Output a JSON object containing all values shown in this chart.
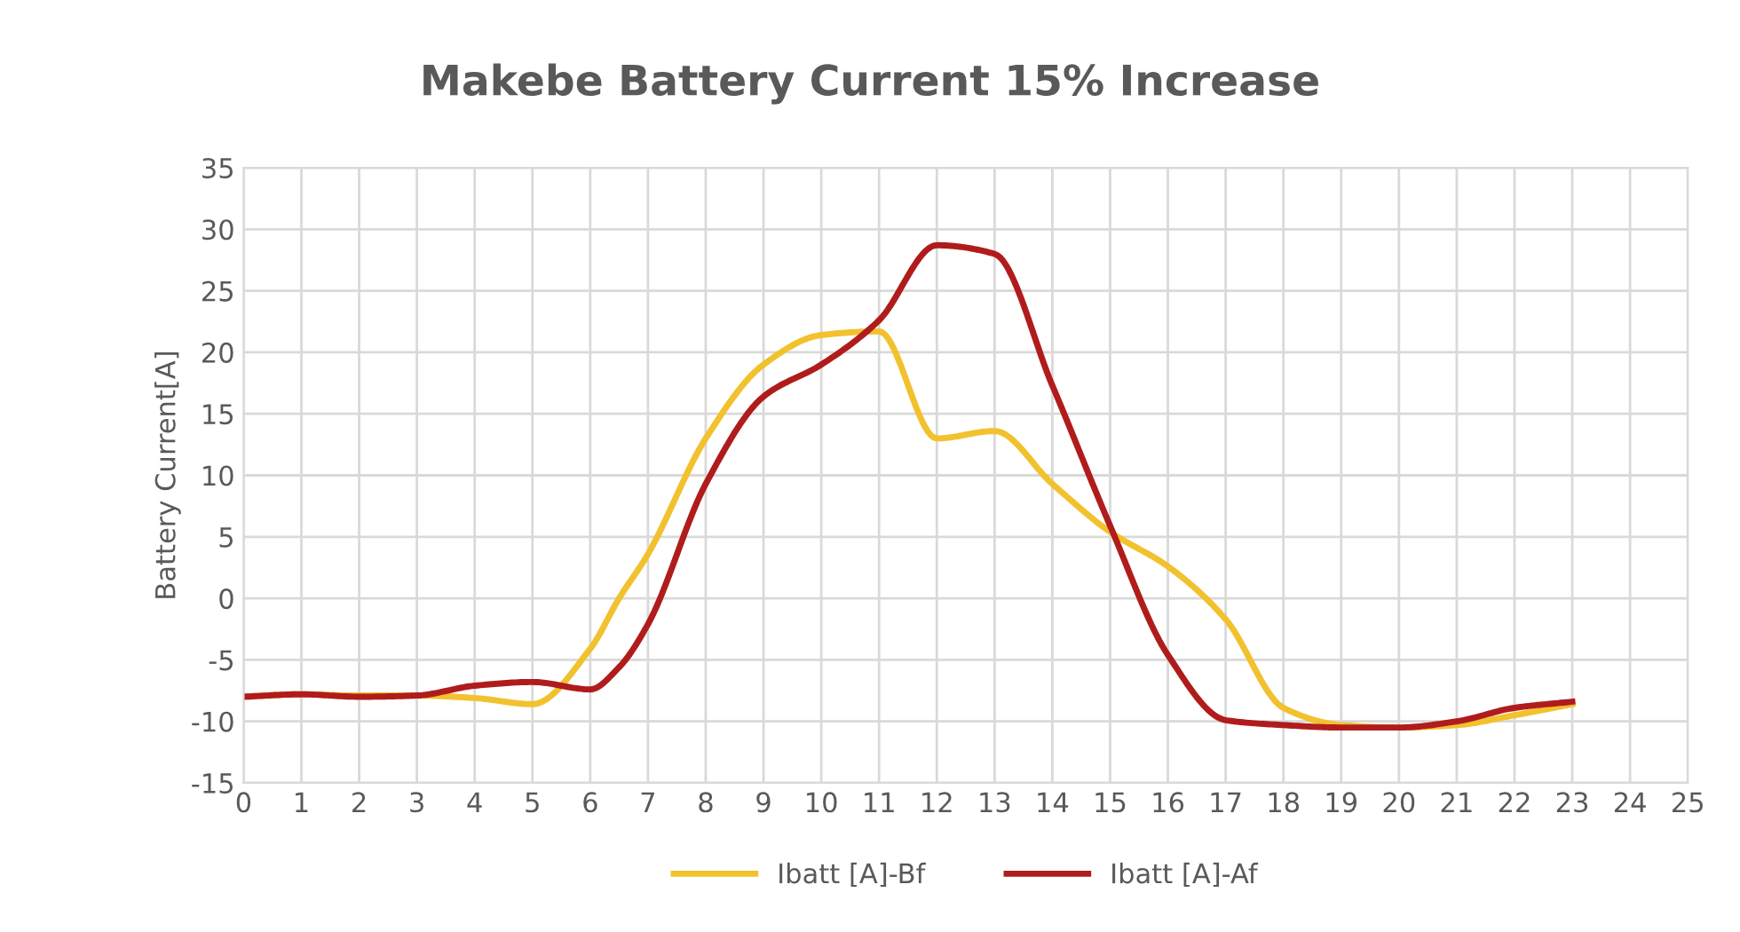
{
  "chart_data": {
    "type": "line",
    "title": "Makebe Battery Current 15% Increase",
    "ylabel": "Battery Current[A]",
    "x": [
      0,
      1,
      2,
      3,
      4,
      5,
      6,
      6.5,
      7,
      8,
      9,
      10,
      11,
      12,
      13,
      14,
      15,
      16,
      17,
      18,
      19,
      20,
      21,
      22,
      23
    ],
    "series": [
      {
        "name": "Ibatt [A]-Bf",
        "color": "#f2c12e",
        "values": [
          -8,
          -7.8,
          -7.9,
          -7.9,
          -8.1,
          -8.6,
          -4.1,
          0,
          3.6,
          13,
          19,
          21.4,
          21.7,
          13,
          13.6,
          9.3,
          5.4,
          2.6,
          -1.7,
          -8.9,
          -10.3,
          -10.5,
          -10.3,
          -9.5,
          -8.6
        ]
      },
      {
        "name": "Ibatt [A]-Af",
        "color": "#b01c1c",
        "values": [
          -8,
          -7.8,
          -8,
          -7.9,
          -7.1,
          -6.8,
          -7.4,
          -5.6,
          -2.1,
          9.3,
          16.4,
          19,
          22.6,
          28.7,
          28,
          17.3,
          5.9,
          -4.6,
          -9.9,
          -10.3,
          -10.5,
          -10.5,
          -10,
          -8.9,
          -8.4
        ]
      }
    ],
    "xlim": [
      0,
      25
    ],
    "xticks": [
      0,
      1,
      2,
      3,
      4,
      5,
      6,
      7,
      8,
      9,
      10,
      11,
      12,
      13,
      14,
      15,
      16,
      17,
      18,
      19,
      20,
      21,
      22,
      23,
      24,
      25
    ],
    "ylim": [
      -15,
      35
    ],
    "yticks": [
      -15,
      -10,
      -5,
      0,
      5,
      10,
      15,
      20,
      25,
      30,
      35
    ],
    "grid": true,
    "legend": "bottom",
    "marker": "none",
    "line_style": "solid"
  }
}
